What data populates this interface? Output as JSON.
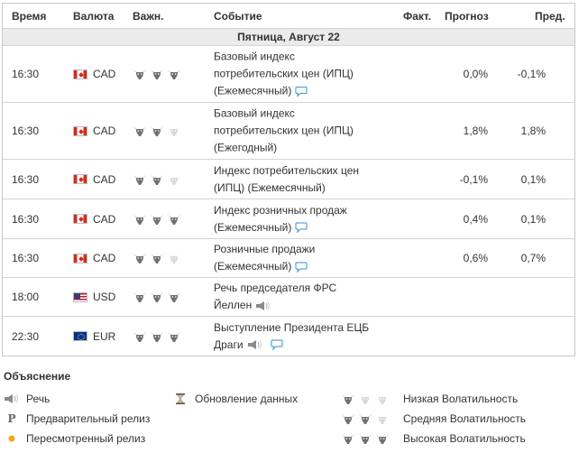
{
  "header": {
    "time": "Время",
    "currency": "Валюта",
    "importance": "Важн.",
    "event": "Событие",
    "actual": "Факт.",
    "forecast": "Прогноз",
    "previous": "Пред."
  },
  "day_label": "Пятница, Август 22",
  "events": [
    {
      "time": "16:30",
      "currency": "CAD",
      "flag": "canada-flag-icon",
      "importance": 3,
      "event": "Базовый индекс потребительских цен (ИПЦ) (Ежемесячный)",
      "icon": "speech-bubble-icon",
      "actual": "",
      "forecast": "0,0%",
      "previous": "-0,1%"
    },
    {
      "time": "16:30",
      "currency": "CAD",
      "flag": "canada-flag-icon",
      "importance": 2,
      "event": "Базовый индекс потребительских цен (ИПЦ) (Ежегодный)",
      "icon": "",
      "actual": "",
      "forecast": "1,8%",
      "previous": "1,8%"
    },
    {
      "time": "16:30",
      "currency": "CAD",
      "flag": "canada-flag-icon",
      "importance": 2,
      "event": "Индекс потребительских цен (ИПЦ) (Ежемесячный)",
      "icon": "",
      "actual": "",
      "forecast": "-0,1%",
      "previous": "0,1%"
    },
    {
      "time": "16:30",
      "currency": "CAD",
      "flag": "canada-flag-icon",
      "importance": 3,
      "event": "Индекс розничных продаж (Ежемесячный)",
      "icon": "speech-bubble-icon",
      "actual": "",
      "forecast": "0,4%",
      "previous": "0,1%"
    },
    {
      "time": "16:30",
      "currency": "CAD",
      "flag": "canada-flag-icon",
      "importance": 2,
      "event": "Розничные продажи (Ежемесячный)",
      "icon": "speech-bubble-icon",
      "actual": "",
      "forecast": "0,6%",
      "previous": "0,7%"
    },
    {
      "time": "18:00",
      "currency": "USD",
      "flag": "usa-flag-icon",
      "importance": 3,
      "event": "Речь председателя ФРС Йеллен",
      "icon": "speaker-icon",
      "actual": "",
      "forecast": "",
      "previous": ""
    },
    {
      "time": "22:30",
      "currency": "EUR",
      "flag": "eu-flag-icon",
      "importance": 3,
      "event": "Выступление Президента ЕЦБ Драги",
      "icon": "speaker-speech-icon",
      "actual": "",
      "forecast": "",
      "previous": ""
    }
  ],
  "legend": {
    "title": "Объяснение",
    "speech": "Речь",
    "preliminary": "Предварительный релиз",
    "revised": "Пересмотренный релиз",
    "data_update": "Обновление данных",
    "low": "Низкая Волатильность",
    "medium": "Средняя Волатильность",
    "high": "Высокая Волатильность",
    "preliminary_mark": "P"
  },
  "colors": {
    "bull_active": "#707070",
    "bull_inactive": "#d9d9d9",
    "day_bg": "#ebebeb",
    "border": "#d5d5d5",
    "revised_dot": "#f5a623"
  }
}
